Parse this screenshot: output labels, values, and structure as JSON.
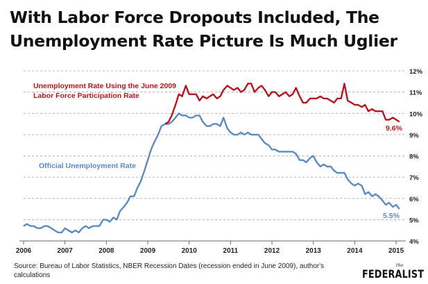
{
  "title": "With Labor Force Dropouts Included, The Unemployment Rate Picture Is Much Uglier",
  "source": "Source: Bureau of Labor Statistics, NBER Recession Dates (recession ended in June 2009), author's calculations",
  "logo": {
    "the": "the",
    "word": "FEDERALIST"
  },
  "colors": {
    "adjusted": "#b5161c",
    "official": "#5b8ac2",
    "grid": "#9a9a9a"
  },
  "chart_data": {
    "type": "line",
    "title": "With Labor Force Dropouts Included, The Unemployment Rate Picture Is Much Uglier",
    "xlim": [
      2006,
      2015.2
    ],
    "ylim": [
      4,
      12
    ],
    "grid": true,
    "x_ticks": [
      "2006",
      "2007",
      "2008",
      "2009",
      "2010",
      "2011",
      "2012",
      "2013",
      "2014",
      "2015"
    ],
    "y_ticks": [
      "4%",
      "5%",
      "6%",
      "7%",
      "8%",
      "9%",
      "10%",
      "11%",
      "12%"
    ],
    "series": [
      {
        "name": "Official Unemployment Rate",
        "end_label": "5.5%",
        "points": [
          [
            2006.0,
            4.7
          ],
          [
            2006.08,
            4.8
          ],
          [
            2006.17,
            4.7
          ],
          [
            2006.25,
            4.7
          ],
          [
            2006.33,
            4.6
          ],
          [
            2006.42,
            4.6
          ],
          [
            2006.5,
            4.7
          ],
          [
            2006.58,
            4.7
          ],
          [
            2006.67,
            4.6
          ],
          [
            2006.75,
            4.5
          ],
          [
            2006.83,
            4.4
          ],
          [
            2006.92,
            4.4
          ],
          [
            2007.0,
            4.6
          ],
          [
            2007.08,
            4.5
          ],
          [
            2007.17,
            4.4
          ],
          [
            2007.25,
            4.5
          ],
          [
            2007.33,
            4.4
          ],
          [
            2007.42,
            4.6
          ],
          [
            2007.5,
            4.7
          ],
          [
            2007.58,
            4.6
          ],
          [
            2007.67,
            4.7
          ],
          [
            2007.75,
            4.7
          ],
          [
            2007.83,
            4.7
          ],
          [
            2007.92,
            5.0
          ],
          [
            2008.0,
            5.0
          ],
          [
            2008.08,
            4.9
          ],
          [
            2008.17,
            5.1
          ],
          [
            2008.25,
            5.0
          ],
          [
            2008.33,
            5.4
          ],
          [
            2008.42,
            5.6
          ],
          [
            2008.5,
            5.8
          ],
          [
            2008.58,
            6.1
          ],
          [
            2008.67,
            6.1
          ],
          [
            2008.75,
            6.5
          ],
          [
            2008.83,
            6.8
          ],
          [
            2008.92,
            7.3
          ],
          [
            2009.0,
            7.8
          ],
          [
            2009.08,
            8.3
          ],
          [
            2009.17,
            8.7
          ],
          [
            2009.25,
            9.0
          ],
          [
            2009.33,
            9.4
          ],
          [
            2009.42,
            9.5
          ],
          [
            2009.5,
            9.5
          ],
          [
            2009.58,
            9.6
          ],
          [
            2009.67,
            9.8
          ],
          [
            2009.75,
            10.0
          ],
          [
            2009.83,
            9.9
          ],
          [
            2009.92,
            9.9
          ],
          [
            2010.0,
            9.8
          ],
          [
            2010.08,
            9.8
          ],
          [
            2010.17,
            9.9
          ],
          [
            2010.25,
            9.9
          ],
          [
            2010.33,
            9.6
          ],
          [
            2010.42,
            9.4
          ],
          [
            2010.5,
            9.4
          ],
          [
            2010.58,
            9.5
          ],
          [
            2010.67,
            9.5
          ],
          [
            2010.75,
            9.4
          ],
          [
            2010.83,
            9.8
          ],
          [
            2010.92,
            9.3
          ],
          [
            2011.0,
            9.1
          ],
          [
            2011.08,
            9.0
          ],
          [
            2011.17,
            9.0
          ],
          [
            2011.25,
            9.1
          ],
          [
            2011.33,
            9.0
          ],
          [
            2011.42,
            9.1
          ],
          [
            2011.5,
            9.0
          ],
          [
            2011.58,
            9.0
          ],
          [
            2011.67,
            9.0
          ],
          [
            2011.75,
            8.8
          ],
          [
            2011.83,
            8.6
          ],
          [
            2011.92,
            8.5
          ],
          [
            2012.0,
            8.3
          ],
          [
            2012.08,
            8.3
          ],
          [
            2012.17,
            8.2
          ],
          [
            2012.25,
            8.2
          ],
          [
            2012.33,
            8.2
          ],
          [
            2012.42,
            8.2
          ],
          [
            2012.5,
            8.2
          ],
          [
            2012.58,
            8.1
          ],
          [
            2012.67,
            7.8
          ],
          [
            2012.75,
            7.8
          ],
          [
            2012.83,
            7.7
          ],
          [
            2012.92,
            7.9
          ],
          [
            2013.0,
            8.0
          ],
          [
            2013.08,
            7.7
          ],
          [
            2013.17,
            7.5
          ],
          [
            2013.25,
            7.6
          ],
          [
            2013.33,
            7.5
          ],
          [
            2013.42,
            7.5
          ],
          [
            2013.5,
            7.3
          ],
          [
            2013.58,
            7.2
          ],
          [
            2013.67,
            7.2
          ],
          [
            2013.75,
            7.2
          ],
          [
            2013.83,
            6.9
          ],
          [
            2013.92,
            6.7
          ],
          [
            2014.0,
            6.6
          ],
          [
            2014.08,
            6.7
          ],
          [
            2014.17,
            6.6
          ],
          [
            2014.25,
            6.2
          ],
          [
            2014.33,
            6.3
          ],
          [
            2014.42,
            6.1
          ],
          [
            2014.5,
            6.2
          ],
          [
            2014.58,
            6.1
          ],
          [
            2014.67,
            5.9
          ],
          [
            2014.75,
            5.7
          ],
          [
            2014.83,
            5.8
          ],
          [
            2014.92,
            5.6
          ],
          [
            2015.0,
            5.7
          ],
          [
            2015.08,
            5.5
          ]
        ]
      },
      {
        "name": "Unemployment Rate Using the June 2009 Labor Force Participation Rate",
        "end_label": "9.6%",
        "points": [
          [
            2009.42,
            9.5
          ],
          [
            2009.5,
            9.6
          ],
          [
            2009.58,
            9.9
          ],
          [
            2009.67,
            10.4
          ],
          [
            2009.75,
            10.9
          ],
          [
            2009.83,
            10.8
          ],
          [
            2009.92,
            11.3
          ],
          [
            2010.0,
            10.9
          ],
          [
            2010.08,
            10.9
          ],
          [
            2010.17,
            10.9
          ],
          [
            2010.25,
            10.6
          ],
          [
            2010.33,
            10.8
          ],
          [
            2010.42,
            10.7
          ],
          [
            2010.5,
            10.8
          ],
          [
            2010.58,
            10.9
          ],
          [
            2010.67,
            10.7
          ],
          [
            2010.75,
            10.8
          ],
          [
            2010.83,
            11.1
          ],
          [
            2010.92,
            11.3
          ],
          [
            2011.0,
            11.2
          ],
          [
            2011.08,
            11.1
          ],
          [
            2011.17,
            11.2
          ],
          [
            2011.25,
            11.0
          ],
          [
            2011.33,
            11.1
          ],
          [
            2011.42,
            11.4
          ],
          [
            2011.5,
            11.4
          ],
          [
            2011.58,
            11.0
          ],
          [
            2011.67,
            11.2
          ],
          [
            2011.75,
            11.3
          ],
          [
            2011.83,
            11.1
          ],
          [
            2011.92,
            10.8
          ],
          [
            2012.0,
            11.0
          ],
          [
            2012.08,
            11.0
          ],
          [
            2012.17,
            10.8
          ],
          [
            2012.25,
            10.9
          ],
          [
            2012.33,
            11.0
          ],
          [
            2012.42,
            10.8
          ],
          [
            2012.5,
            10.9
          ],
          [
            2012.58,
            11.2
          ],
          [
            2012.67,
            10.8
          ],
          [
            2012.75,
            10.5
          ],
          [
            2012.83,
            10.5
          ],
          [
            2012.92,
            10.7
          ],
          [
            2013.0,
            10.7
          ],
          [
            2013.08,
            10.7
          ],
          [
            2013.17,
            10.8
          ],
          [
            2013.25,
            10.7
          ],
          [
            2013.33,
            10.7
          ],
          [
            2013.42,
            10.6
          ],
          [
            2013.5,
            10.5
          ],
          [
            2013.58,
            10.7
          ],
          [
            2013.67,
            10.7
          ],
          [
            2013.75,
            11.4
          ],
          [
            2013.83,
            10.6
          ],
          [
            2013.92,
            10.5
          ],
          [
            2014.0,
            10.4
          ],
          [
            2014.08,
            10.4
          ],
          [
            2014.17,
            10.3
          ],
          [
            2014.25,
            10.4
          ],
          [
            2014.33,
            10.1
          ],
          [
            2014.42,
            10.2
          ],
          [
            2014.5,
            10.1
          ],
          [
            2014.58,
            10.1
          ],
          [
            2014.67,
            10.1
          ],
          [
            2014.75,
            9.7
          ],
          [
            2014.83,
            9.7
          ],
          [
            2014.92,
            9.8
          ],
          [
            2015.0,
            9.7
          ],
          [
            2015.08,
            9.6
          ]
        ]
      }
    ]
  }
}
